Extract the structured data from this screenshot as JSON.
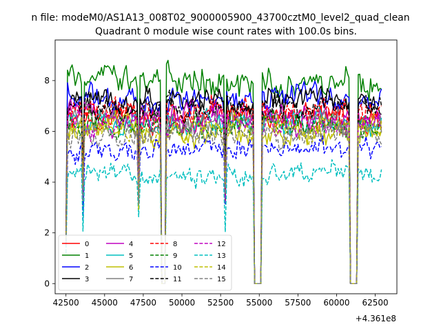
{
  "figure": {
    "suptitle": "n file: modeM0/AS1A13_008T02_9000005900_43700cztM0_level2_quad_clean",
    "title": "Quadrant 0 module wise count rates with 100.0s bins.",
    "x_offset_label": "+4.361e8"
  },
  "chart_data": {
    "type": "line",
    "title": "Quadrant 0 module wise count rates with 100.0s bins.",
    "xlabel": "",
    "ylabel": "",
    "x_offset": 436100000,
    "xlim": [
      41800,
      63900
    ],
    "ylim": [
      -0.4,
      9.6
    ],
    "xticks": [
      42500,
      45000,
      47500,
      50000,
      52500,
      55000,
      57500,
      60000,
      62500
    ],
    "xtick_labels": [
      "42500",
      "45000",
      "47500",
      "50000",
      "52500",
      "55000",
      "57500",
      "60000",
      "62500"
    ],
    "yticks": [
      0,
      2,
      4,
      6,
      8
    ],
    "ytick_labels": [
      "0",
      "2",
      "4",
      "6",
      "8"
    ],
    "grid": false,
    "legend_position": "lower-left",
    "x_start": 42500,
    "bin_width_s": 100,
    "num_bins": 205,
    "gaps": [
      {
        "start": 48700,
        "end": 48900
      },
      {
        "start": 54700,
        "end": 55100
      },
      {
        "start": 60900,
        "end": 61300
      }
    ],
    "dips": [
      43600,
      47200,
      52800
    ],
    "series": [
      {
        "name": "0",
        "color": "#ff0000",
        "dashed": false,
        "level": 6.5
      },
      {
        "name": "1",
        "color": "#008000",
        "dashed": false,
        "level": 8.0
      },
      {
        "name": "2",
        "color": "#0000ff",
        "dashed": false,
        "level": 7.3
      },
      {
        "name": "3",
        "color": "#000000",
        "dashed": false,
        "level": 7.2
      },
      {
        "name": "4",
        "color": "#bf00bf",
        "dashed": false,
        "level": 6.7
      },
      {
        "name": "5",
        "color": "#00bfbf",
        "dashed": false,
        "level": 6.3
      },
      {
        "name": "6",
        "color": "#bfbf00",
        "dashed": false,
        "level": 6.0
      },
      {
        "name": "7",
        "color": "#808080",
        "dashed": false,
        "level": 6.4
      },
      {
        "name": "8",
        "color": "#ff0000",
        "dashed": true,
        "level": 6.8
      },
      {
        "name": "9",
        "color": "#008000",
        "dashed": true,
        "level": 6.2
      },
      {
        "name": "10",
        "color": "#0000ff",
        "dashed": true,
        "level": 5.3
      },
      {
        "name": "11",
        "color": "#000000",
        "dashed": true,
        "level": 6.9
      },
      {
        "name": "12",
        "color": "#bf00bf",
        "dashed": true,
        "level": 6.3
      },
      {
        "name": "13",
        "color": "#00bfbf",
        "dashed": true,
        "level": 4.3
      },
      {
        "name": "14",
        "color": "#bfbf00",
        "dashed": true,
        "level": 6.1
      },
      {
        "name": "15",
        "color": "#808080",
        "dashed": true,
        "level": 5.9
      }
    ]
  }
}
